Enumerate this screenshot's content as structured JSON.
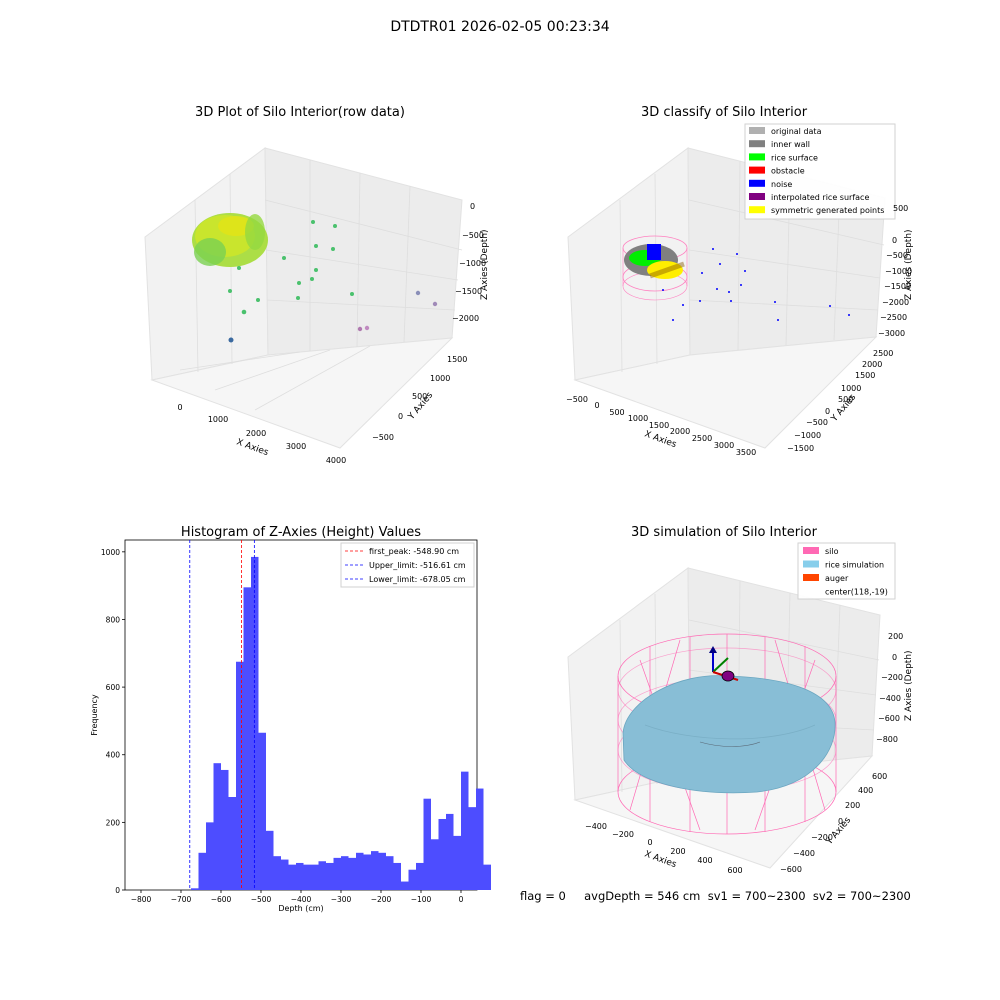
{
  "suptitle": "DTDTR01 2026-02-05 00:23:34",
  "status_text": "flag = 0     avgDepth = 546 cm  sv1 = 700~2300  sv2 = 700~2300",
  "chart_data": [
    {
      "id": "raw",
      "type": "scatter",
      "title": "3D Plot of Silo Interior(row data)",
      "xlabel": "X Axies",
      "ylabel": "Y Axies",
      "zlabel": "Z Axies (Depth)",
      "x_ticks": [
        "0",
        "1000",
        "2000",
        "3000",
        "4000"
      ],
      "y_ticks": [
        "−500",
        "0",
        "500",
        "1000",
        "1500"
      ],
      "z_ticks": [
        "0",
        "−500",
        "−1000",
        "−1500",
        "−2000"
      ],
      "colormap": "viridis"
    },
    {
      "id": "classify",
      "type": "scatter",
      "title": "3D classify of Silo Interior",
      "xlabel": "X Axies",
      "ylabel": "Y Axies",
      "zlabel": "Z Axies (Depth)",
      "x_ticks": [
        "−500",
        "0",
        "500",
        "1000",
        "1500",
        "2000",
        "2500",
        "3000",
        "3500"
      ],
      "y_ticks": [
        "−1500",
        "−1000",
        "−500",
        "0",
        "500",
        "1000",
        "1500",
        "2000",
        "2500"
      ],
      "z_ticks": [
        "500",
        "0",
        "−500",
        "−1000",
        "−1500",
        "−2000",
        "−2500",
        "−3000"
      ],
      "legend_position": "upper right",
      "legend": [
        {
          "label": "original data",
          "color": "#b0b0b0"
        },
        {
          "label": "inner wall",
          "color": "#808080"
        },
        {
          "label": "rice surface",
          "color": "#00ff00"
        },
        {
          "label": "obstacle",
          "color": "#ff0000"
        },
        {
          "label": "noise",
          "color": "#0000ff"
        },
        {
          "label": "interpolated rice surface",
          "color": "#800080"
        },
        {
          "label": "symmetric generated points",
          "color": "#ffff00"
        }
      ]
    },
    {
      "id": "hist",
      "type": "bar",
      "title": "Histogram of Z-Axies (Height) Values",
      "xlabel": "Depth (cm)",
      "ylabel": "Frequency",
      "xlim": [
        -840,
        40
      ],
      "ylim": [
        0,
        1035
      ],
      "bar_color": "#4d4dff",
      "x_ticks": [
        -800,
        -700,
        -600,
        -500,
        -400,
        -300,
        -200,
        -100,
        0
      ],
      "y_ticks": [
        0,
        200,
        400,
        600,
        800,
        1000
      ],
      "bin_width": 18.75,
      "bins_start": -675,
      "values": [
        5,
        110,
        200,
        375,
        355,
        275,
        675,
        895,
        985,
        465,
        175,
        100,
        90,
        75,
        80,
        75,
        75,
        85,
        80,
        95,
        100,
        95,
        110,
        105,
        115,
        110,
        100,
        80,
        25,
        60,
        80,
        270,
        150,
        210,
        225,
        160,
        350,
        245,
        300,
        75
      ],
      "vlines": [
        {
          "x": -548.9,
          "color": "#ff0000",
          "label": "first_peak: -548.90 cm"
        },
        {
          "x": -516.61,
          "color": "#0000ff",
          "label": "Upper_limit: -516.61 cm"
        },
        {
          "x": -678.05,
          "color": "#0000ff",
          "label": "Lower_limit: -678.05 cm"
        }
      ],
      "legend_position": "upper right"
    },
    {
      "id": "sim",
      "type": "scatter",
      "title": "3D simulation of Silo Interior",
      "xlabel": "X Axies",
      "ylabel": "Y Axies",
      "zlabel": "Z Axies (Depth)",
      "x_ticks": [
        "−400",
        "−200",
        "0",
        "200",
        "400",
        "600"
      ],
      "y_ticks": [
        "−600",
        "−400",
        "−200",
        "0",
        "200",
        "400",
        "600"
      ],
      "z_ticks": [
        "200",
        "0",
        "−200",
        "−400",
        "−600",
        "−800"
      ],
      "legend_position": "upper right",
      "legend": [
        {
          "label": "silo",
          "color": "#ff69b4"
        },
        {
          "label": "rice simulation",
          "color": "#87ceeb"
        },
        {
          "label": "auger",
          "color": "#ff4500"
        },
        {
          "label": "center(118,-19)",
          "color": ""
        }
      ]
    }
  ]
}
